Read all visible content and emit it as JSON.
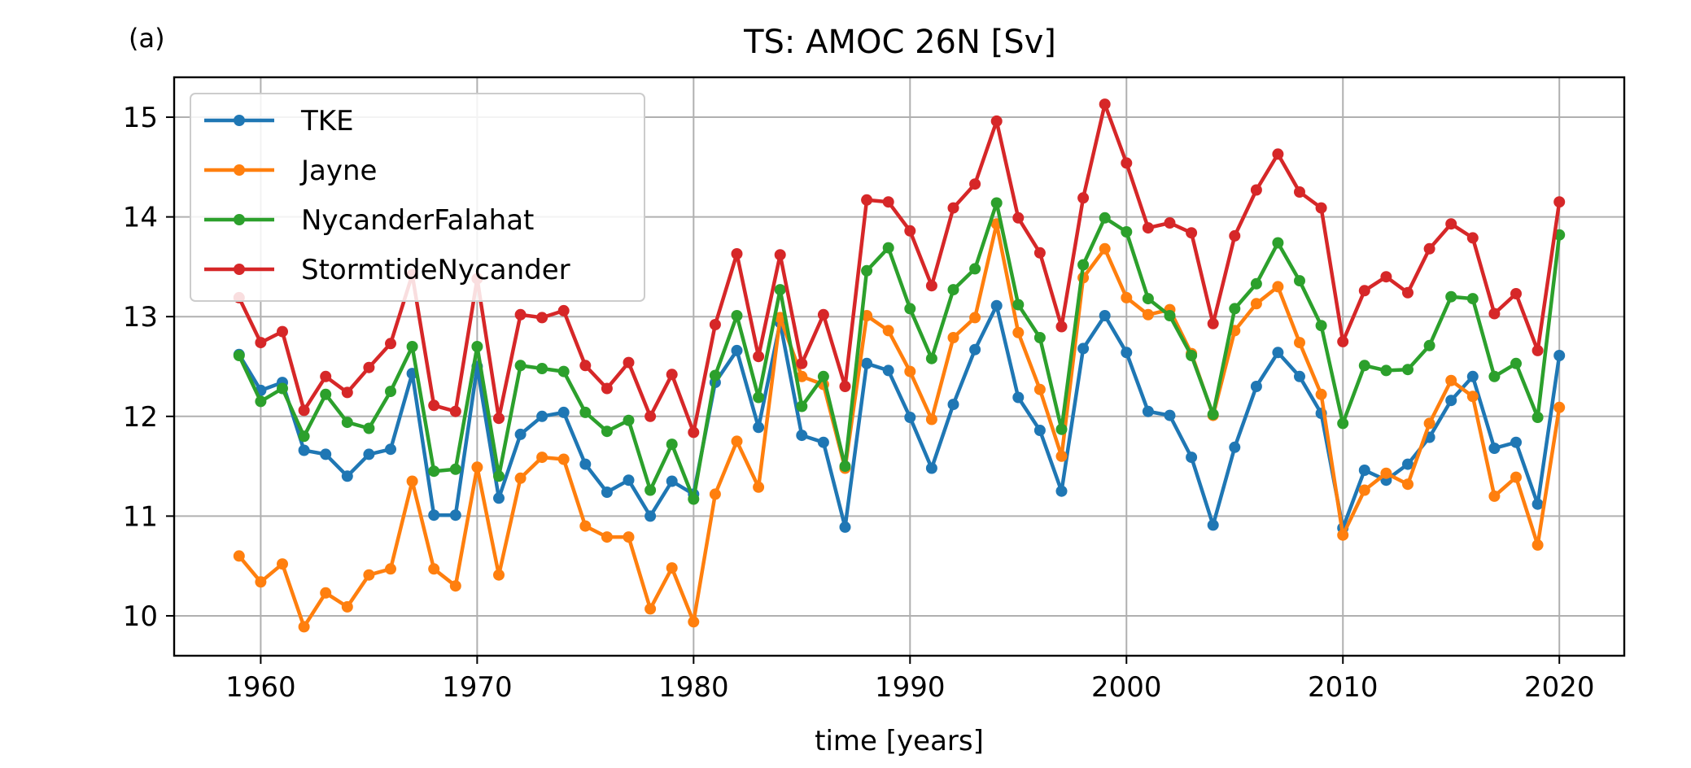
{
  "chart_data": {
    "type": "line",
    "panel_label": "(a)",
    "title": "TS: AMOC 26N [Sv]",
    "xlabel": "time [years]",
    "ylabel": "",
    "xlim": [
      1956,
      2023
    ],
    "ylim": [
      9.6,
      15.4
    ],
    "xticks": [
      1960,
      1970,
      1980,
      1990,
      2000,
      2010,
      2020
    ],
    "yticks": [
      10,
      11,
      12,
      13,
      14,
      15
    ],
    "grid": true,
    "legend_position": "upper-left",
    "x": [
      1959,
      1960,
      1961,
      1962,
      1963,
      1964,
      1965,
      1966,
      1967,
      1968,
      1969,
      1970,
      1971,
      1972,
      1973,
      1974,
      1975,
      1976,
      1977,
      1978,
      1979,
      1980,
      1981,
      1982,
      1983,
      1984,
      1985,
      1986,
      1987,
      1988,
      1989,
      1990,
      1991,
      1992,
      1993,
      1994,
      1995,
      1996,
      1997,
      1998,
      1999,
      2000,
      2001,
      2002,
      2003,
      2004,
      2005,
      2006,
      2007,
      2008,
      2009,
      2010,
      2011,
      2012,
      2013,
      2014,
      2015,
      2016,
      2017,
      2018,
      2019,
      2020
    ],
    "series": [
      {
        "name": "TKE",
        "color": "#1f77b4",
        "values": [
          12.62,
          12.26,
          12.34,
          11.66,
          11.62,
          11.4,
          11.62,
          11.67,
          12.43,
          11.01,
          11.01,
          12.5,
          11.18,
          11.82,
          12.0,
          12.04,
          11.52,
          11.24,
          11.36,
          11.0,
          11.35,
          11.22,
          12.34,
          12.66,
          11.89,
          12.94,
          11.81,
          11.74,
          10.89,
          12.53,
          12.46,
          11.99,
          11.48,
          12.12,
          12.67,
          13.11,
          12.19,
          11.86,
          11.25,
          12.68,
          13.01,
          12.64,
          12.05,
          12.01,
          11.59,
          10.91,
          11.69,
          12.3,
          12.64,
          12.4,
          12.03,
          10.88,
          11.46,
          11.36,
          11.52,
          11.79,
          12.16,
          12.4,
          11.68,
          11.74,
          11.12,
          12.61
        ]
      },
      {
        "name": "Jayne",
        "color": "#ff7f0e",
        "values": [
          10.6,
          10.34,
          10.52,
          9.89,
          10.23,
          10.09,
          10.41,
          10.47,
          11.35,
          10.47,
          10.3,
          11.49,
          10.41,
          11.38,
          11.59,
          11.57,
          10.9,
          10.79,
          10.79,
          10.07,
          10.48,
          9.94,
          11.22,
          11.75,
          11.29,
          12.99,
          12.4,
          12.32,
          11.48,
          13.01,
          12.86,
          12.45,
          11.97,
          12.79,
          12.99,
          13.93,
          12.84,
          12.27,
          11.6,
          13.39,
          13.68,
          13.19,
          13.02,
          13.07,
          12.63,
          12.01,
          12.86,
          13.13,
          13.3,
          12.74,
          12.22,
          10.81,
          11.26,
          11.43,
          11.32,
          11.93,
          12.36,
          12.2,
          11.2,
          11.39,
          10.71,
          12.09
        ]
      },
      {
        "name": "NycanderFalahat",
        "color": "#2ca02c",
        "values": [
          12.61,
          12.15,
          12.28,
          11.8,
          12.22,
          11.94,
          11.88,
          12.25,
          12.7,
          11.45,
          11.47,
          12.7,
          11.4,
          12.51,
          12.48,
          12.45,
          12.04,
          11.85,
          11.96,
          11.26,
          11.72,
          11.17,
          12.41,
          13.01,
          12.19,
          13.27,
          12.1,
          12.4,
          11.5,
          13.46,
          13.69,
          13.08,
          12.58,
          13.27,
          13.48,
          14.14,
          13.12,
          12.79,
          11.87,
          13.52,
          13.99,
          13.85,
          13.18,
          13.01,
          12.61,
          12.02,
          13.08,
          13.33,
          13.74,
          13.36,
          12.91,
          11.93,
          12.51,
          12.46,
          12.47,
          12.71,
          13.2,
          13.18,
          12.4,
          12.53,
          11.99,
          13.82
        ]
      },
      {
        "name": "StormtideNycander",
        "color": "#d62728",
        "values": [
          13.19,
          12.74,
          12.85,
          12.06,
          12.4,
          12.24,
          12.49,
          12.73,
          13.42,
          12.11,
          12.05,
          13.38,
          11.98,
          13.02,
          12.99,
          13.06,
          12.51,
          12.28,
          12.54,
          12.0,
          12.42,
          11.84,
          12.92,
          13.63,
          12.6,
          13.62,
          12.53,
          13.02,
          12.3,
          14.17,
          14.15,
          13.86,
          13.31,
          14.09,
          14.33,
          14.96,
          13.99,
          13.64,
          12.9,
          14.19,
          15.13,
          14.54,
          13.89,
          13.94,
          13.84,
          12.93,
          13.81,
          14.27,
          14.63,
          14.25,
          14.09,
          12.75,
          13.26,
          13.4,
          13.24,
          13.68,
          13.93,
          13.79,
          13.03,
          13.23,
          12.66,
          14.15
        ]
      }
    ]
  }
}
